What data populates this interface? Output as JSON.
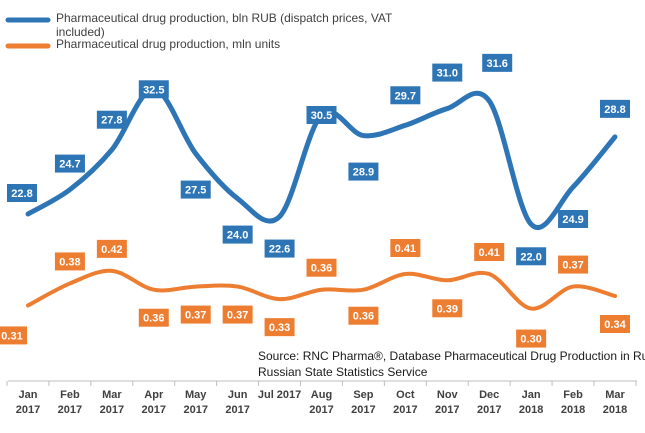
{
  "chart_data": {
    "type": "line",
    "categories": [
      [
        "Jan",
        "2017"
      ],
      [
        "Feb",
        "2017"
      ],
      [
        "Mar",
        "2017"
      ],
      [
        "Apr",
        "2017"
      ],
      [
        "May",
        "2017"
      ],
      [
        "Jun",
        "2017"
      ],
      [
        "Jul 2017",
        ""
      ],
      [
        "Aug",
        "2017"
      ],
      [
        "Sep",
        "2017"
      ],
      [
        "Oct",
        "2017"
      ],
      [
        "Nov",
        "2017"
      ],
      [
        "Dec",
        "2017"
      ],
      [
        "Jan",
        "2018"
      ],
      [
        "Feb",
        "2018"
      ],
      [
        "Mar",
        "2018"
      ]
    ],
    "series": [
      {
        "name": "Pharmaceutical drug production, bln RUB (dispatch prices, VAT included)",
        "name_lines": [
          "Pharmaceutical drug production, bln RUB (dispatch prices, VAT",
          "included)"
        ],
        "color": "#2e75b6",
        "values": [
          22.8,
          24.7,
          27.8,
          32.5,
          27.5,
          24.0,
          22.6,
          30.5,
          28.9,
          29.7,
          31.0,
          31.6,
          22.0,
          24.9,
          28.8
        ],
        "labels": [
          "22.8",
          "24.7",
          "27.8",
          "32.5",
          "27.5",
          "24.0",
          "22.6",
          "30.5",
          "28.9",
          "29.7",
          "31.0",
          "31.6",
          "22.0",
          "24.9",
          "28.8"
        ],
        "ylim": [
          20,
          34
        ]
      },
      {
        "name": "Pharmaceutical drug production, mln units",
        "name_lines": [
          "Pharmaceutical drug production, mln units"
        ],
        "color": "#ed7d31",
        "values": [
          0.31,
          0.38,
          0.42,
          0.36,
          0.37,
          0.37,
          0.33,
          0.36,
          0.36,
          0.41,
          0.39,
          0.41,
          0.3,
          0.37,
          0.34
        ],
        "labels": [
          "0.31",
          "0.38",
          "0.42",
          "0.36",
          "0.37",
          "0.37",
          "0.33",
          "0.36",
          "0.36",
          "0.41",
          "0.39",
          "0.41",
          "0.30",
          "0.37",
          "0.34"
        ],
        "ylim": [
          0.2,
          0.55
        ]
      }
    ],
    "source_lines": [
      "Source: RNC Pharma®, Database Pharmaceutical Drug Production in Russia,",
      "Russian State Statistics Service"
    ],
    "legend": "top-left",
    "grid": false
  }
}
